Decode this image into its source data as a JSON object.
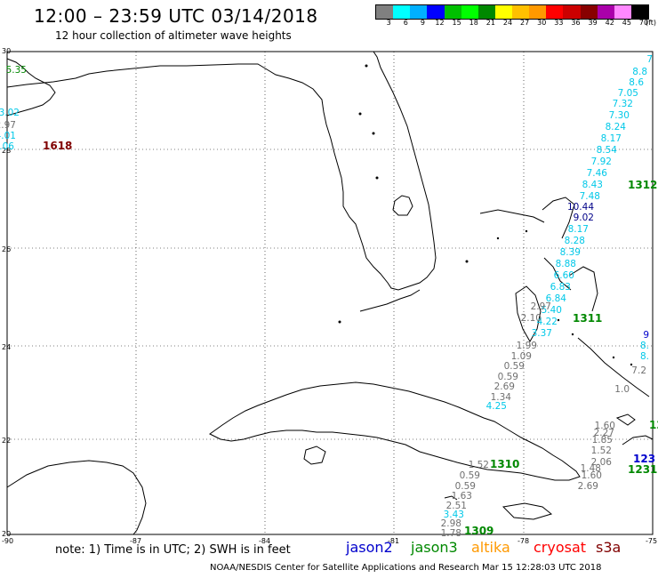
{
  "header": {
    "title": "12:00 – 23:59 UTC 03/14/2018",
    "subtitle": "12 hour collection of altimeter wave heights"
  },
  "scale": {
    "colors": [
      "#808080",
      "#00ffff",
      "#00b0ff",
      "#0000ff",
      "#00c000",
      "#00ff00",
      "#008800",
      "#ffff00",
      "#ffc000",
      "#ff9900",
      "#ff0000",
      "#cc0000",
      "#880000",
      "#aa00aa",
      "#ff88ff",
      "#000000"
    ],
    "labels": [
      "3",
      "6",
      "9",
      "12",
      "15",
      "18",
      "21",
      "24",
      "27",
      "30",
      "33",
      "36",
      "39",
      "42",
      "45",
      "70",
      "(ft)"
    ]
  },
  "axes": {
    "lat_labels": [
      "30",
      "28",
      "26",
      "24",
      "22",
      "20"
    ],
    "lon_labels": [
      "-90",
      "-87",
      "-84",
      "-81",
      "-78",
      "-75"
    ]
  },
  "colors": {
    "gray": "#707070",
    "cyan": "#00c8e8",
    "navy": "#000088",
    "green": "#008800",
    "maroon": "#800000",
    "blue": "#0000cc"
  },
  "passes": [
    {
      "text": "1618",
      "color": "maroon"
    },
    {
      "text": "1312",
      "color": "green"
    },
    {
      "text": "1311",
      "color": "green"
    },
    {
      "text": "1310",
      "color": "green"
    },
    {
      "text": "1309",
      "color": "green"
    },
    {
      "text": "1231",
      "color": "green"
    },
    {
      "text": "123",
      "color": "blue"
    },
    {
      "text": "12",
      "color": "green"
    }
  ],
  "waves": [
    {
      "v": "5.35",
      "c": "green"
    },
    {
      "v": "3.02",
      "c": "cyan"
    },
    {
      "v": "2.97",
      "c": "gray"
    },
    {
      "v": "4.01",
      "c": "cyan"
    },
    {
      "v": "3.06",
      "c": "cyan"
    },
    {
      "v": "7",
      "c": "cyan"
    },
    {
      "v": "8.8",
      "c": "cyan"
    },
    {
      "v": "8.6",
      "c": "cyan"
    },
    {
      "v": "7.05",
      "c": "cyan"
    },
    {
      "v": "7.32",
      "c": "cyan"
    },
    {
      "v": "7.30",
      "c": "cyan"
    },
    {
      "v": "8.24",
      "c": "cyan"
    },
    {
      "v": "8.17",
      "c": "cyan"
    },
    {
      "v": "8.54",
      "c": "cyan"
    },
    {
      "v": "7.92",
      "c": "cyan"
    },
    {
      "v": "7.46",
      "c": "cyan"
    },
    {
      "v": "8.43",
      "c": "cyan"
    },
    {
      "v": "7.48",
      "c": "cyan"
    },
    {
      "v": "10.44",
      "c": "navy"
    },
    {
      "v": "9.02",
      "c": "navy"
    },
    {
      "v": "8.17",
      "c": "cyan"
    },
    {
      "v": "8.28",
      "c": "cyan"
    },
    {
      "v": "8.39",
      "c": "cyan"
    },
    {
      "v": "8.88",
      "c": "cyan"
    },
    {
      "v": "6.60",
      "c": "cyan"
    },
    {
      "v": "6.83",
      "c": "cyan"
    },
    {
      "v": "6.84",
      "c": "cyan"
    },
    {
      "v": "5.40",
      "c": "cyan"
    },
    {
      "v": "4.22",
      "c": "cyan"
    },
    {
      "v": "3.37",
      "c": "cyan"
    },
    {
      "v": "2.97",
      "c": "gray"
    },
    {
      "v": "2.10",
      "c": "gray"
    },
    {
      "v": "1.99",
      "c": "gray"
    },
    {
      "v": "1.09",
      "c": "gray"
    },
    {
      "v": "0.59",
      "c": "gray"
    },
    {
      "v": "0.59",
      "c": "gray"
    },
    {
      "v": "2.69",
      "c": "gray"
    },
    {
      "v": "1.34",
      "c": "gray"
    },
    {
      "v": "4.25",
      "c": "cyan"
    },
    {
      "v": "1.52",
      "c": "gray"
    },
    {
      "v": "0.59",
      "c": "gray"
    },
    {
      "v": "0.59",
      "c": "gray"
    },
    {
      "v": "1.63",
      "c": "gray"
    },
    {
      "v": "2.51",
      "c": "gray"
    },
    {
      "v": "3.43",
      "c": "cyan"
    },
    {
      "v": "2.98",
      "c": "gray"
    },
    {
      "v": "1.78",
      "c": "gray"
    },
    {
      "v": "9",
      "c": "blue"
    },
    {
      "v": "8.",
      "c": "cyan"
    },
    {
      "v": "8.",
      "c": "cyan"
    },
    {
      "v": "7.2",
      "c": "gray"
    },
    {
      "v": "1.0",
      "c": "gray"
    },
    {
      "v": "1.60",
      "c": "gray"
    },
    {
      "v": "2.27",
      "c": "gray"
    },
    {
      "v": "1.85",
      "c": "gray"
    },
    {
      "v": "1.52",
      "c": "gray"
    },
    {
      "v": "2.06",
      "c": "gray"
    },
    {
      "v": "1.48",
      "c": "gray"
    },
    {
      "v": "1.60",
      "c": "gray"
    },
    {
      "v": "2.69",
      "c": "gray"
    }
  ],
  "notes": {
    "note_text": "note: 1) Time is in UTC; 2) SWH is in feet",
    "footer": "NOAA/NESDIS Center for Satellite Applications and Research   Mar 15 12:28:03 UTC 2018"
  },
  "legend": [
    {
      "label": "jason2",
      "color": "#0000cc"
    },
    {
      "label": "jason3",
      "color": "#008800"
    },
    {
      "label": "altika",
      "color": "#ff9900"
    },
    {
      "label": "cryosat",
      "color": "#ff0000"
    },
    {
      "label": "s3a",
      "color": "#800000"
    }
  ]
}
